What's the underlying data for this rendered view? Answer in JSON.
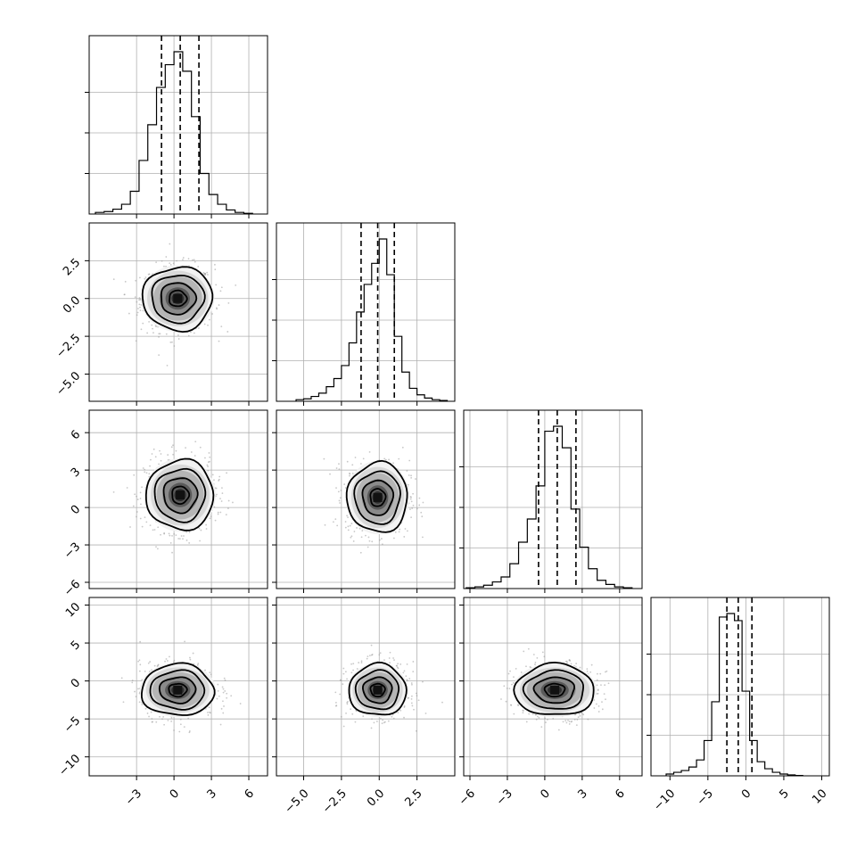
{
  "chart_data": {
    "type": "corner",
    "grid": true,
    "parameters": [
      {
        "id": "p0",
        "range": [
          -6.8,
          7.5
        ],
        "ticks": [
          -3,
          0,
          3,
          6
        ],
        "tick_labels": [
          "−3",
          "0",
          "3",
          "6"
        ],
        "quantiles": [
          -1.0,
          0.5,
          2.0
        ],
        "hist_edges": [
          -6.3,
          -5.6,
          -4.9,
          -4.2,
          -3.5,
          -2.8,
          -2.1,
          -1.4,
          -0.7,
          0.0,
          0.7,
          1.4,
          2.1,
          2.8,
          3.5,
          4.2,
          4.9,
          5.6,
          6.3
        ],
        "hist_counts": [
          0.01,
          0.015,
          0.03,
          0.06,
          0.14,
          0.33,
          0.55,
          0.78,
          0.92,
          1.0,
          0.88,
          0.6,
          0.25,
          0.12,
          0.06,
          0.025,
          0.01,
          0.004
        ]
      },
      {
        "id": "p1",
        "range": [
          -6.8,
          5.0
        ],
        "ticks": [
          -5.0,
          -2.5,
          0.0,
          2.5
        ],
        "tick_labels": [
          "−5.0",
          "−2.5",
          "0.0",
          "2.5"
        ],
        "quantiles": [
          -1.2,
          -0.1,
          1.0
        ],
        "hist_edges": [
          -5.5,
          -5.0,
          -4.5,
          -4.0,
          -3.5,
          -3.0,
          -2.5,
          -2.0,
          -1.5,
          -1.0,
          -0.5,
          0.0,
          0.5,
          1.0,
          1.5,
          2.0,
          2.5,
          3.0,
          3.5,
          4.0,
          4.5
        ],
        "hist_counts": [
          0.01,
          0.015,
          0.03,
          0.05,
          0.09,
          0.14,
          0.22,
          0.36,
          0.55,
          0.72,
          0.85,
          1.0,
          0.78,
          0.4,
          0.18,
          0.08,
          0.04,
          0.02,
          0.01,
          0.005
        ]
      },
      {
        "id": "p2",
        "range": [
          -6.5,
          7.8
        ],
        "ticks": [
          -6,
          -3,
          0,
          3,
          6
        ],
        "tick_labels": [
          "−6",
          "−3",
          "0",
          "3",
          "6"
        ],
        "quantiles": [
          -0.5,
          1.0,
          2.5
        ],
        "hist_edges": [
          -6.3,
          -5.6,
          -4.9,
          -4.2,
          -3.5,
          -2.8,
          -2.1,
          -1.4,
          -0.7,
          0.0,
          0.7,
          1.4,
          2.1,
          2.8,
          3.5,
          4.2,
          4.9,
          5.6,
          6.3,
          7.0
        ],
        "hist_counts": [
          0.005,
          0.01,
          0.02,
          0.04,
          0.07,
          0.15,
          0.28,
          0.42,
          0.62,
          0.95,
          0.98,
          0.85,
          0.48,
          0.25,
          0.12,
          0.05,
          0.025,
          0.01,
          0.005
        ]
      },
      {
        "id": "p3",
        "range": [
          -12.5,
          11.0
        ],
        "ticks": [
          -10,
          -5,
          0,
          5,
          10
        ],
        "tick_labels": [
          "−10",
          "−5",
          "0",
          "5",
          "10"
        ],
        "quantiles": [
          -2.5,
          -1.0,
          0.8
        ],
        "hist_edges": [
          -10.5,
          -9.5,
          -8.5,
          -7.5,
          -6.5,
          -5.5,
          -4.5,
          -3.5,
          -2.5,
          -1.5,
          -0.5,
          0.5,
          1.5,
          2.5,
          3.5,
          4.5,
          5.5,
          6.5,
          7.5
        ],
        "hist_counts": [
          0.01,
          0.02,
          0.03,
          0.05,
          0.09,
          0.2,
          0.42,
          0.9,
          0.92,
          0.88,
          0.48,
          0.2,
          0.08,
          0.04,
          0.02,
          0.01,
          0.005,
          0.002
        ]
      }
    ],
    "pairs": [
      {
        "x": "p0",
        "y": "p1",
        "peak": [
          0.3,
          0.0
        ],
        "sigma": [
          1.4,
          1.05
        ],
        "contour_radii": [
          0.5,
          1.0,
          1.5,
          2.0
        ]
      },
      {
        "x": "p0",
        "y": "p2",
        "peak": [
          0.5,
          1.0
        ],
        "sigma": [
          1.35,
          1.4
        ],
        "contour_radii": [
          0.5,
          1.0,
          1.5,
          2.0
        ]
      },
      {
        "x": "p1",
        "y": "p2",
        "peak": [
          -0.1,
          0.8
        ],
        "sigma": [
          1.0,
          1.4
        ],
        "contour_radii": [
          0.5,
          1.0,
          1.5,
          2.0
        ]
      },
      {
        "x": "p0",
        "y": "p3",
        "peak": [
          0.3,
          -1.2
        ],
        "sigma": [
          1.45,
          1.7
        ],
        "contour_radii": [
          0.5,
          1.0,
          1.5,
          2.0
        ]
      },
      {
        "x": "p1",
        "y": "p3",
        "peak": [
          -0.1,
          -1.2
        ],
        "sigma": [
          0.95,
          1.7
        ],
        "contour_radii": [
          0.5,
          1.0,
          1.5,
          2.0
        ]
      },
      {
        "x": "p2",
        "y": "p3",
        "peak": [
          0.8,
          -1.2
        ],
        "sigma": [
          1.6,
          1.7
        ],
        "contour_radii": [
          0.5,
          1.0,
          1.5,
          2.0
        ]
      }
    ]
  }
}
